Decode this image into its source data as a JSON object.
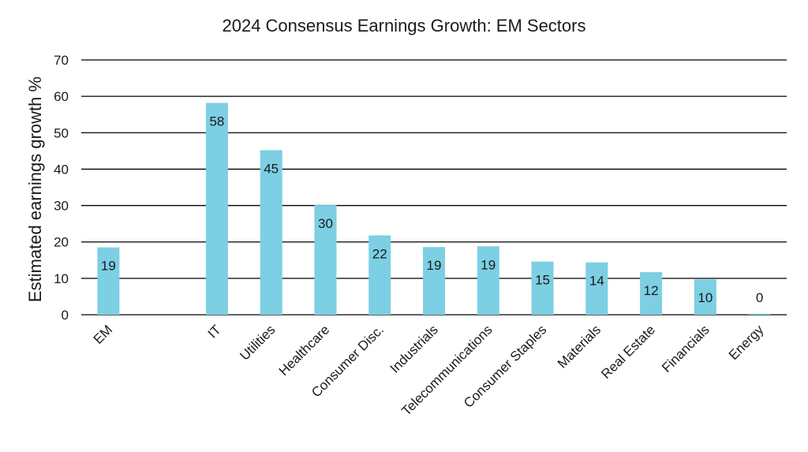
{
  "chart_data": {
    "type": "bar",
    "title": "2024 Consensus Earnings Growth: EM Sectors",
    "xlabel": "",
    "ylabel": "Estimated earnings growth %",
    "ylim": [
      0,
      70
    ],
    "yticks": [
      0,
      10,
      20,
      30,
      40,
      50,
      60,
      70
    ],
    "grid": true,
    "legend": "none",
    "bar_color": "#7dcfe3",
    "categories": [
      "EM",
      "",
      "IT",
      "Utilities",
      "Healthcare",
      "Consumer Disc.",
      "Industrials",
      "Telecommunications",
      "Consumer Staples",
      "Materials",
      "Real Estate",
      "Financials",
      "Energy"
    ],
    "values": [
      18.5,
      null,
      58.2,
      45.2,
      30.1,
      21.8,
      18.6,
      18.8,
      14.6,
      14.4,
      11.7,
      9.7,
      0.3
    ],
    "data_labels": [
      "19",
      "",
      "58",
      "45",
      "30",
      "22",
      "19",
      "19",
      "15",
      "14",
      "12",
      "10",
      "0"
    ]
  }
}
